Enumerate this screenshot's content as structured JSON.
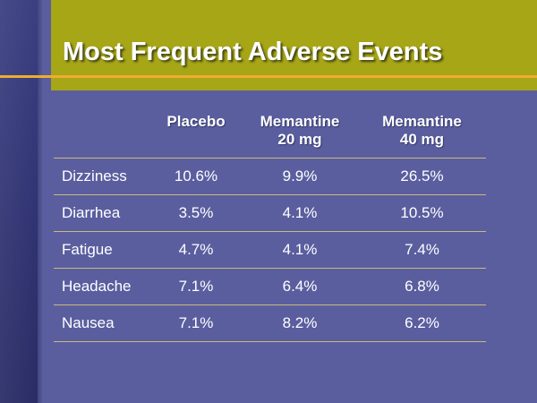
{
  "slide": {
    "title": "Most Frequent Adverse Events"
  },
  "table": {
    "headers": [
      {
        "line1": "",
        "line2": ""
      },
      {
        "line1": "Placebo",
        "line2": ""
      },
      {
        "line1": "Memantine",
        "line2": "20 mg"
      },
      {
        "line1": "Memantine",
        "line2": "40 mg"
      }
    ],
    "rows": [
      {
        "event": "Dizziness",
        "placebo": "10.6%",
        "mem20": "9.9%",
        "mem40": "26.5%"
      },
      {
        "event": "Diarrhea",
        "placebo": "3.5%",
        "mem20": "4.1%",
        "mem40": "10.5%"
      },
      {
        "event": "Fatigue",
        "placebo": "4.7%",
        "mem20": "4.1%",
        "mem40": "7.4%"
      },
      {
        "event": "Headache",
        "placebo": "7.1%",
        "mem20": "6.4%",
        "mem40": "6.8%"
      },
      {
        "event": "Nausea",
        "placebo": "7.1%",
        "mem20": "8.2%",
        "mem40": "6.2%"
      }
    ]
  },
  "colors": {
    "background": "#5a5e9f",
    "left_band": "#33367a",
    "title_block": "#a6a617",
    "accent_line": "#f0ac2f",
    "row_rule": "#c9bb7d",
    "text": "#ffffff"
  }
}
